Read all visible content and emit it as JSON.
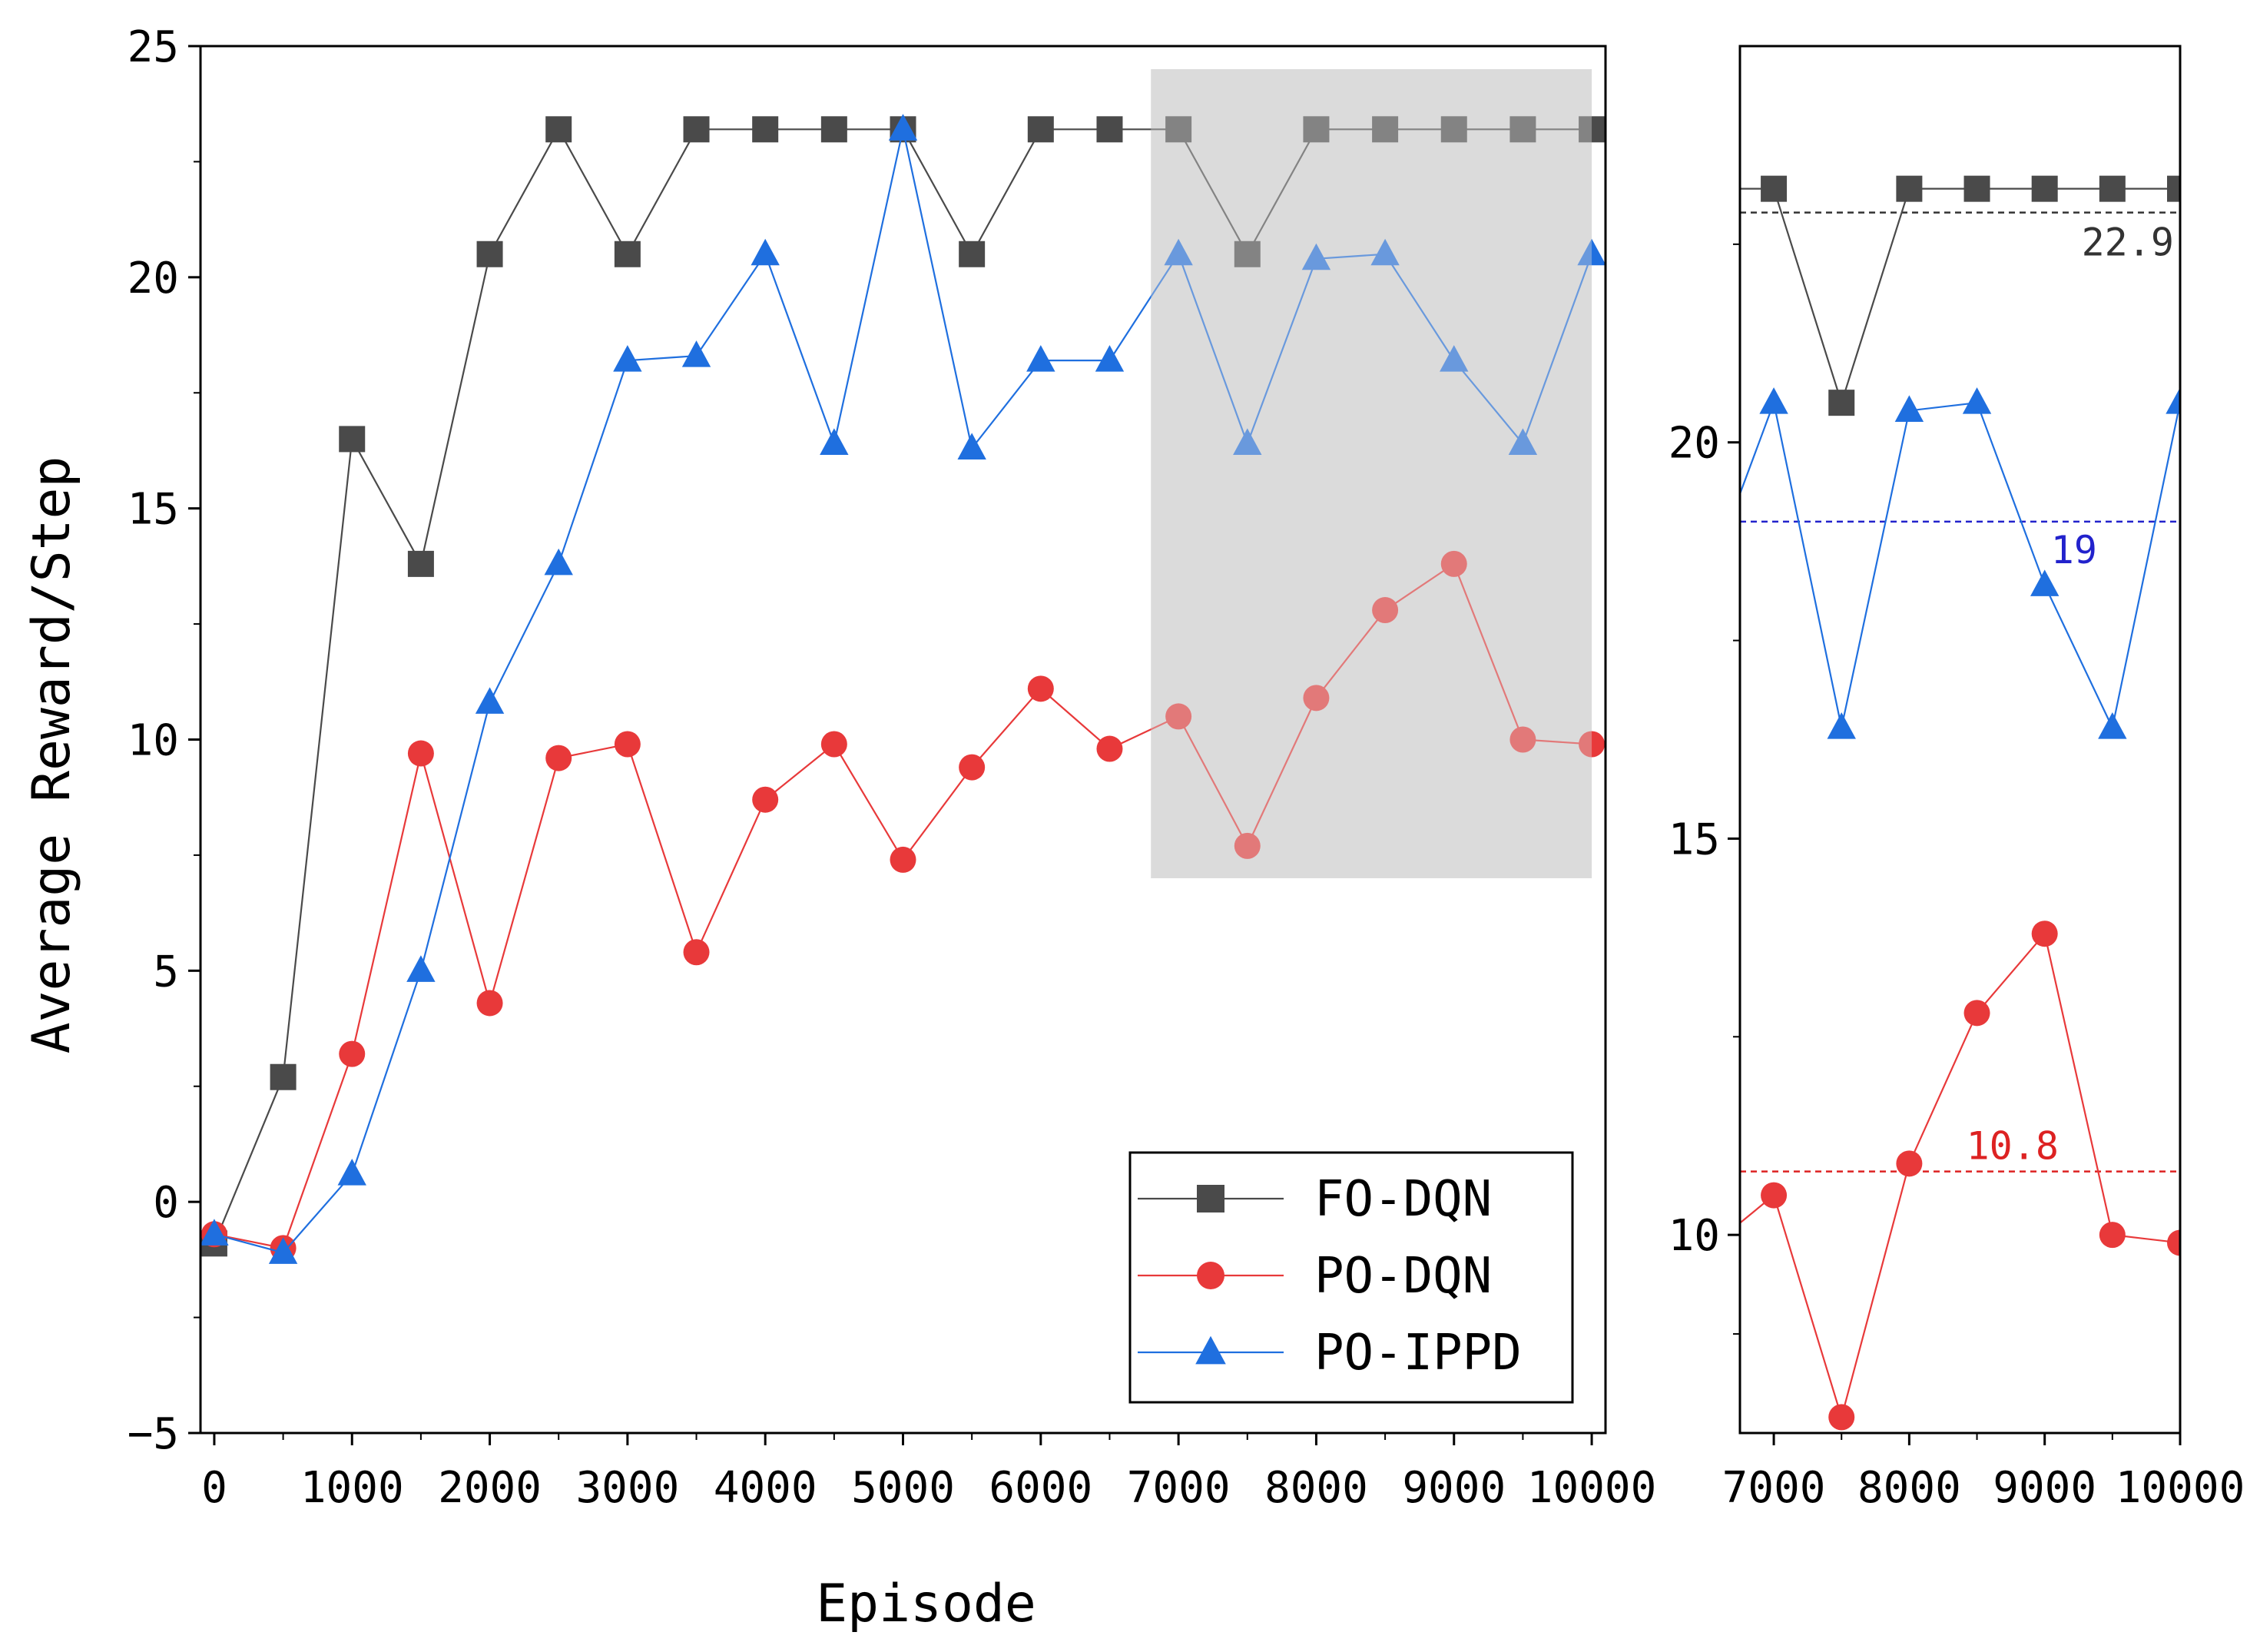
{
  "chart_data": {
    "type": "line",
    "xlabel": "Episode",
    "ylabel": "Average Reward/Step",
    "main": {
      "xlim": [
        -100,
        10100
      ],
      "ylim": [
        -5,
        25
      ],
      "xticks": [
        0,
        1000,
        2000,
        3000,
        4000,
        5000,
        6000,
        7000,
        8000,
        9000,
        10000
      ],
      "yticks": [
        -5,
        0,
        5,
        10,
        15,
        20,
        25
      ],
      "highlight_region": {
        "x": [
          6800,
          10000
        ],
        "y": [
          7,
          24.5
        ]
      }
    },
    "inset": {
      "xlim": [
        6750,
        10000
      ],
      "ylim": [
        7.5,
        25
      ],
      "xticks": [
        7000,
        8000,
        9000,
        10000
      ],
      "yticks": [
        10,
        15,
        20
      ],
      "reference_lines": [
        {
          "series": "FO-DQN",
          "value": 22.9,
          "label": "22.9",
          "color": "#333333"
        },
        {
          "series": "PO-IPPD",
          "value": 19,
          "label": "19",
          "color": "#2222cc"
        },
        {
          "series": "PO-DQN",
          "value": 10.8,
          "label": "10.8",
          "color": "#dd2222"
        }
      ]
    },
    "x": [
      0,
      500,
      1000,
      1500,
      2000,
      2500,
      3000,
      3500,
      4000,
      4500,
      5000,
      5500,
      6000,
      6500,
      7000,
      7500,
      8000,
      8500,
      9000,
      9500,
      10000
    ],
    "series": [
      {
        "name": "FO-DQN",
        "marker": "square",
        "color": "#4a4a4a",
        "values": [
          -0.9,
          2.7,
          16.5,
          13.8,
          20.5,
          23.2,
          20.5,
          23.2,
          23.2,
          23.2,
          23.2,
          20.5,
          23.2,
          23.2,
          23.2,
          20.5,
          23.2,
          23.2,
          23.2,
          23.2,
          23.2
        ]
      },
      {
        "name": "PO-DQN",
        "marker": "circle",
        "color": "#e8393a",
        "values": [
          -0.7,
          -1.0,
          3.2,
          9.7,
          4.3,
          9.6,
          9.9,
          5.4,
          8.7,
          9.9,
          7.4,
          9.4,
          11.1,
          9.8,
          10.5,
          7.7,
          10.9,
          12.8,
          13.8,
          10.0,
          9.9
        ]
      },
      {
        "name": "PO-IPPD",
        "marker": "triangle",
        "color": "#1f6fdf",
        "values": [
          -0.7,
          -1.1,
          0.6,
          5.0,
          10.8,
          13.8,
          18.2,
          18.3,
          20.5,
          16.4,
          23.2,
          16.3,
          18.2,
          18.2,
          20.5,
          16.4,
          20.4,
          20.5,
          18.2,
          16.4,
          20.5
        ]
      }
    ]
  }
}
